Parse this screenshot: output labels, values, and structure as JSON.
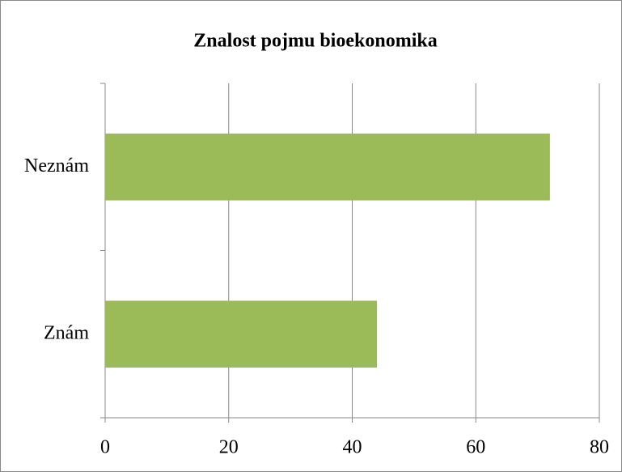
{
  "chart_data": {
    "type": "bar",
    "orientation": "horizontal",
    "title": "Znalost pojmu bioekonomika",
    "categories": [
      "Znám",
      "Neznám"
    ],
    "values": [
      44,
      72
    ],
    "color": "#9bbb59",
    "xlim": [
      0,
      80
    ],
    "xticks": [
      0,
      20,
      40,
      60,
      80
    ],
    "grid": true
  }
}
